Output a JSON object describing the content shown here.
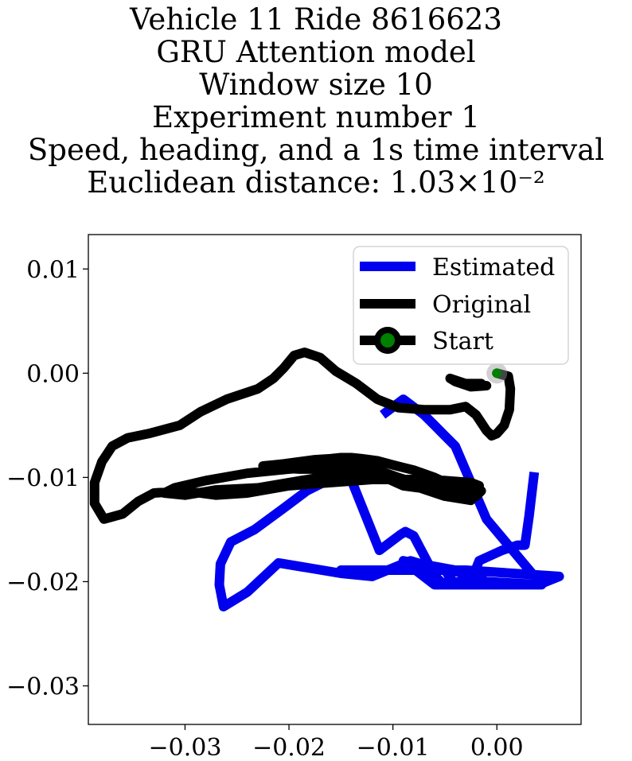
{
  "title": {
    "lines": [
      "Vehicle 11 Ride 8616623",
      "GRU Attention model",
      "Window size 10",
      "Experiment number 1",
      "Speed, heading, and a 1s time interval",
      "Euclidean distance: 1.03×10⁻²"
    ]
  },
  "chart_data": {
    "type": "line",
    "xlim": [
      -0.0393,
      0.0081
    ],
    "ylim": [
      -0.0337,
      0.0133
    ],
    "xticks": [
      -0.03,
      -0.02,
      -0.01,
      0.0
    ],
    "xtick_labels": [
      "−0.03",
      "−0.02",
      "−0.01",
      "0.00"
    ],
    "yticks": [
      0.01,
      0.0,
      -0.01,
      -0.02,
      -0.03
    ],
    "ytick_labels": [
      "0.01",
      "0.00",
      "−0.01",
      "−0.02",
      "−0.03"
    ],
    "grid": false,
    "legend_position": "top-right",
    "legend": [
      "Estimated",
      "Original",
      "Start"
    ],
    "colors": {
      "estimated": "#0000ee",
      "original": "#000000",
      "start_marker": "#008000"
    },
    "series": [
      {
        "name": "Estimated",
        "x": [
          0.0036,
          0.0031,
          0.0027,
          0.002,
          0.0005,
          -0.0017,
          -0.0025,
          -0.0053,
          -0.006,
          -0.008,
          -0.0088,
          -0.0093,
          -0.0113,
          -0.0143,
          -0.0163,
          -0.0183,
          -0.0203,
          -0.0233,
          -0.0256,
          -0.0266,
          -0.0267,
          -0.0263,
          -0.024,
          -0.021,
          -0.015,
          -0.012,
          -0.0083,
          -0.0073,
          -0.004,
          -0.003,
          -0.0013,
          -0.002,
          -0.004,
          -0.005,
          -0.015,
          -0.012,
          -0.009,
          -0.003,
          0.006,
          0.004,
          -0.002,
          -0.006,
          -0.009,
          -0.004,
          -0.001,
          0.0043,
          -0.001,
          -0.004,
          -0.005,
          -0.006,
          -0.007,
          -0.009,
          -0.011
        ],
        "y": [
          -0.0095,
          -0.0137,
          -0.0165,
          -0.0165,
          -0.017,
          -0.018,
          -0.02,
          -0.0201,
          -0.0194,
          -0.0156,
          -0.0152,
          -0.0155,
          -0.017,
          -0.0095,
          -0.0103,
          -0.0113,
          -0.0128,
          -0.015,
          -0.0162,
          -0.0183,
          -0.0203,
          -0.0224,
          -0.021,
          -0.0182,
          -0.0192,
          -0.0195,
          -0.018,
          -0.0183,
          -0.0189,
          -0.0192,
          -0.0191,
          -0.0203,
          -0.0203,
          -0.0189,
          -0.0189,
          -0.0189,
          -0.0189,
          -0.0189,
          -0.0195,
          -0.0203,
          -0.0203,
          -0.0203,
          -0.018,
          -0.019,
          -0.02,
          -0.0203,
          -0.014,
          -0.007,
          -0.006,
          -0.005,
          -0.004,
          -0.0025,
          -0.004
        ]
      },
      {
        "name": "Original",
        "x": [
          0.0,
          0.0011,
          0.0013,
          0.0012,
          0.0007,
          0.0,
          -0.0005,
          -0.001,
          -0.002,
          -0.003,
          -0.0045,
          -0.007,
          -0.0095,
          -0.0115,
          -0.0135,
          -0.0155,
          -0.017,
          -0.0185,
          -0.0195,
          -0.0205,
          -0.0215,
          -0.023,
          -0.026,
          -0.0285,
          -0.0305,
          -0.0335,
          -0.0355,
          -0.037,
          -0.038,
          -0.0387,
          -0.0387,
          -0.0378,
          -0.036,
          -0.0345,
          -0.033,
          -0.03,
          -0.027,
          -0.024,
          -0.02,
          -0.016,
          -0.012,
          -0.008,
          -0.005,
          -0.0025,
          -0.0017,
          -0.003,
          -0.006,
          -0.009,
          -0.011,
          -0.013,
          -0.015,
          -0.017,
          -0.02,
          -0.024,
          -0.028,
          -0.031,
          -0.032,
          -0.03,
          -0.027,
          -0.023,
          -0.02,
          -0.017,
          -0.014,
          -0.011,
          -0.008,
          -0.005,
          -0.0025,
          -0.002,
          -0.0025,
          -0.0045,
          -0.007,
          -0.0095,
          -0.0115,
          -0.014,
          -0.016,
          -0.0175,
          -0.019,
          -0.0205,
          -0.022,
          -0.0225,
          -0.0215,
          -0.0205,
          -0.019,
          -0.0175,
          -0.016,
          -0.015,
          -0.014,
          -0.013,
          -0.0115,
          -0.01,
          -0.008,
          -0.006,
          -0.0045,
          -0.003,
          -0.002,
          -0.0015,
          -0.002,
          -0.003,
          -0.0045
        ],
        "y": [
          0.0,
          -0.0003,
          -0.0015,
          -0.0035,
          -0.005,
          -0.0058,
          -0.006,
          -0.0055,
          -0.004,
          -0.0032,
          -0.0035,
          -0.0035,
          -0.0033,
          -0.0025,
          -0.001,
          0.0002,
          0.0015,
          0.002,
          0.0017,
          0.0005,
          -0.0005,
          -0.0015,
          -0.0025,
          -0.0037,
          -0.005,
          -0.0058,
          -0.0062,
          -0.007,
          -0.0085,
          -0.0105,
          -0.0125,
          -0.014,
          -0.0135,
          -0.0123,
          -0.0115,
          -0.0113,
          -0.0117,
          -0.0115,
          -0.0108,
          -0.0105,
          -0.0102,
          -0.0102,
          -0.0103,
          -0.0105,
          -0.0108,
          -0.0112,
          -0.0112,
          -0.0108,
          -0.0099,
          -0.0092,
          -0.009,
          -0.009,
          -0.0092,
          -0.0096,
          -0.0103,
          -0.011,
          -0.0115,
          -0.0117,
          -0.0112,
          -0.011,
          -0.0105,
          -0.01,
          -0.0097,
          -0.01,
          -0.0108,
          -0.0118,
          -0.0122,
          -0.0115,
          -0.011,
          -0.011,
          -0.0108,
          -0.01,
          -0.0093,
          -0.0088,
          -0.009,
          -0.0092,
          -0.0092,
          -0.0091,
          -0.009,
          -0.0089,
          -0.0088,
          -0.0087,
          -0.0085,
          -0.0083,
          -0.0082,
          -0.0081,
          -0.0081,
          -0.0082,
          -0.0084,
          -0.0088,
          -0.0093,
          -0.01,
          -0.0107,
          -0.0115,
          -0.0118,
          -0.0113,
          -0.0108,
          -0.0106,
          -0.0105
        ]
      },
      {
        "name": "Start",
        "x": [
          0.0
        ],
        "y": [
          0.0
        ]
      }
    ],
    "original_tail": {
      "x": [
        -0.0015,
        -0.003,
        -0.0045,
        -0.004,
        -0.0025,
        -0.001
      ],
      "y": [
        -0.001,
        -0.001,
        -0.0005,
        -0.0008,
        -0.0013,
        -0.0012
      ]
    }
  }
}
